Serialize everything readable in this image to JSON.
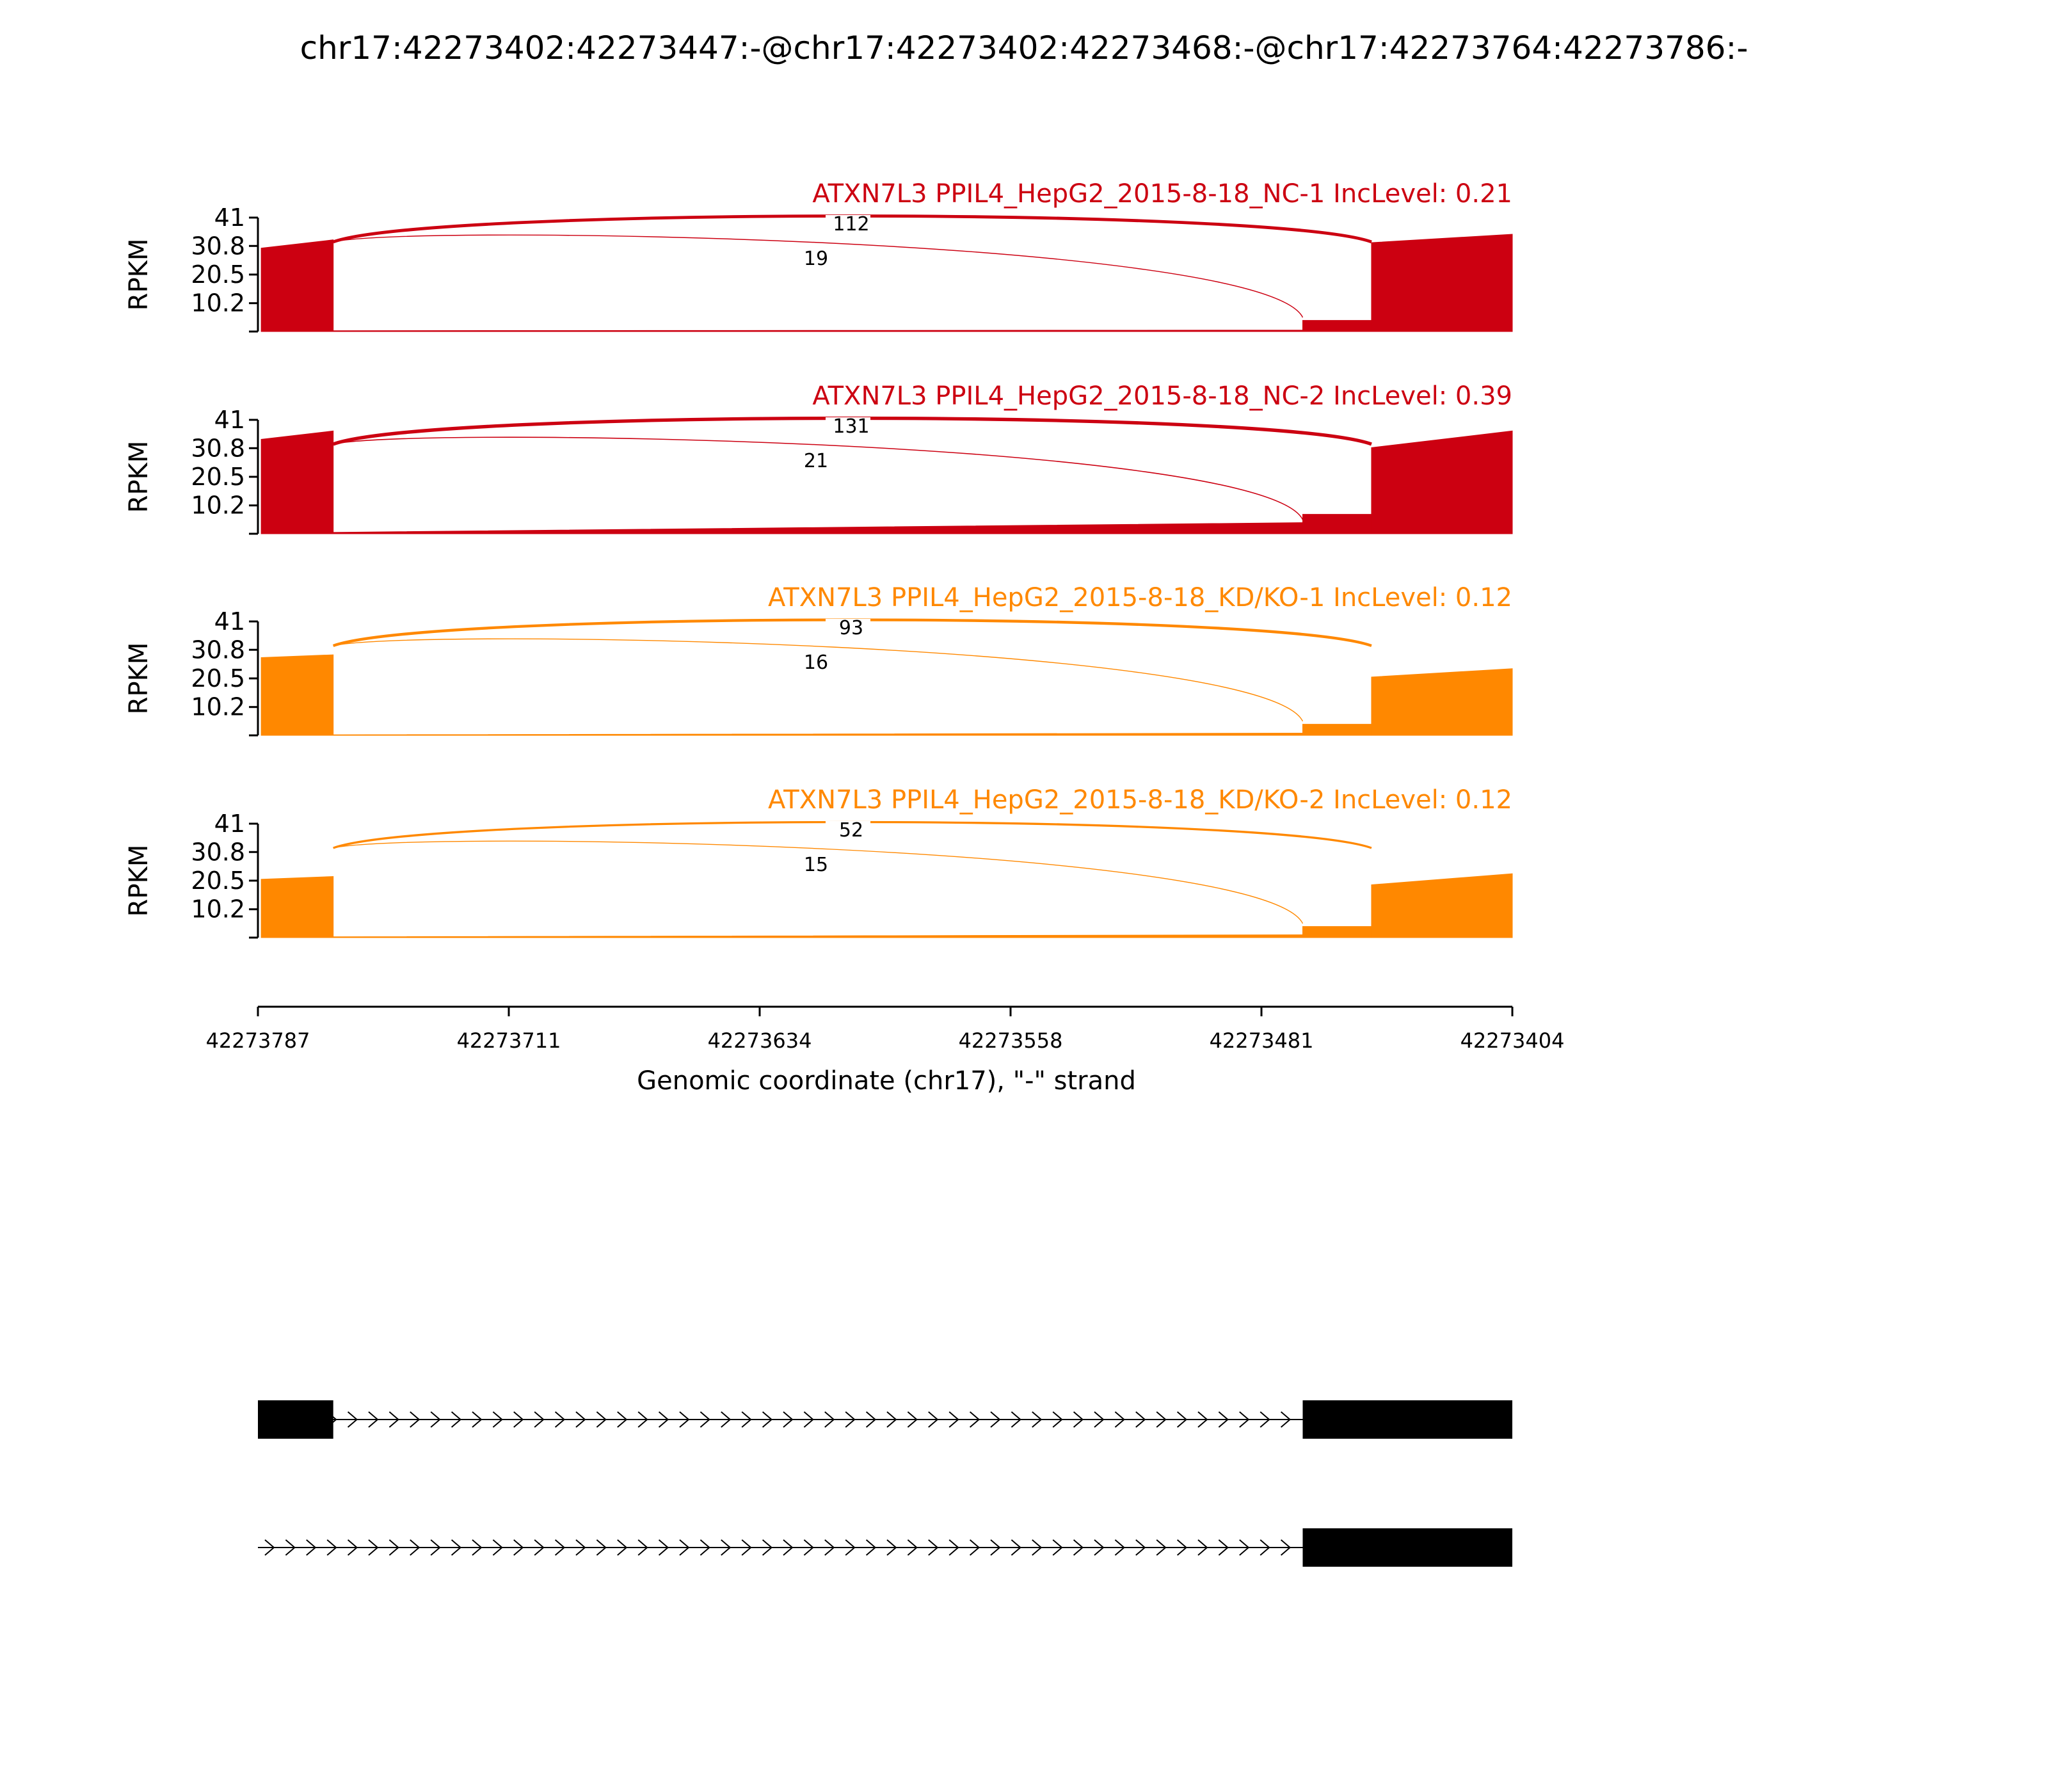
{
  "page": {
    "title": "chr17:42273402:42273447:-@chr17:42273402:42273468:-@chr17:42273764:42273786:-"
  },
  "colors": {
    "nc": "#CC0011",
    "kd": "#FF8800",
    "axis": "#000000",
    "gene": "#000000"
  },
  "chart_data": {
    "type": "area",
    "title": "chr17:42273402:42273447:-@chr17:42273402:42273468:-@chr17:42273764:42273786:-",
    "ylabel": "RPKM",
    "xlabel": "Genomic coordinate (chr17), \"-\" strand",
    "x_range": [
      42273787,
      42273404
    ],
    "x_ticks": [
      "42273787",
      "42273711",
      "42273634",
      "42273558",
      "42273481",
      "42273404"
    ],
    "y_range": [
      0,
      41
    ],
    "y_ticks": [
      "41",
      "30.8",
      "20.5",
      "10.2"
    ],
    "tracks": [
      {
        "label": "ATXN7L3 PPIL4_HepG2_2015-8-18_NC-1 IncLevel: 0.21",
        "color": "#CC0011",
        "coverage": [
          {
            "x": [
              42273786,
              42273764
            ],
            "y": [
              30,
              33
            ]
          },
          {
            "x": [
              42273764,
              42273468
            ],
            "y": [
              0.3,
              0.5
            ]
          },
          {
            "x": [
              42273468,
              42273447
            ],
            "y": [
              4,
              4
            ]
          },
          {
            "x": [
              42273447,
              42273404
            ],
            "y": [
              32,
              35
            ]
          }
        ],
        "junctions": [
          {
            "label": "112",
            "count": 112
          },
          {
            "label": "19",
            "count": 19
          }
        ]
      },
      {
        "label": "ATXN7L3 PPIL4_HepG2_2015-8-18_NC-2 IncLevel: 0.39",
        "color": "#CC0011",
        "coverage": [
          {
            "x": [
              42273786,
              42273764
            ],
            "y": [
              34,
              37
            ]
          },
          {
            "x": [
              42273764,
              42273468
            ],
            "y": [
              0.5,
              4
            ]
          },
          {
            "x": [
              42273468,
              42273447
            ],
            "y": [
              7,
              7
            ]
          },
          {
            "x": [
              42273447,
              42273404
            ],
            "y": [
              31,
              37
            ]
          }
        ],
        "junctions": [
          {
            "label": "131",
            "count": 131
          },
          {
            "label": "21",
            "count": 21
          }
        ]
      },
      {
        "label": "ATXN7L3 PPIL4_HepG2_2015-8-18_KD/KO-1 IncLevel: 0.12",
        "color": "#FF8800",
        "coverage": [
          {
            "x": [
              42273786,
              42273764
            ],
            "y": [
              28,
              29
            ]
          },
          {
            "x": [
              42273764,
              42273468
            ],
            "y": [
              0.2,
              0.8
            ]
          },
          {
            "x": [
              42273468,
              42273447
            ],
            "y": [
              4,
              4
            ]
          },
          {
            "x": [
              42273447,
              42273404
            ],
            "y": [
              21,
              24
            ]
          }
        ],
        "junctions": [
          {
            "label": "93",
            "count": 93
          },
          {
            "label": "16",
            "count": 16
          }
        ]
      },
      {
        "label": "ATXN7L3 PPIL4_HepG2_2015-8-18_KD/KO-2 IncLevel: 0.12",
        "color": "#FF8800",
        "coverage": [
          {
            "x": [
              42273786,
              42273764
            ],
            "y": [
              21,
              22
            ]
          },
          {
            "x": [
              42273764,
              42273468
            ],
            "y": [
              0.3,
              1
            ]
          },
          {
            "x": [
              42273468,
              42273447
            ],
            "y": [
              4,
              4
            ]
          },
          {
            "x": [
              42273447,
              42273404
            ],
            "y": [
              19,
              23
            ]
          }
        ],
        "junctions": [
          {
            "label": "52",
            "count": 52
          },
          {
            "label": "15",
            "count": 15
          }
        ]
      }
    ],
    "gene_models": [
      {
        "exons": [
          [
            42273787,
            42273764
          ],
          [
            42273468,
            42273404
          ]
        ]
      },
      {
        "exons": [
          [
            42273468,
            42273404
          ]
        ],
        "intron_start": 42273787
      }
    ]
  }
}
